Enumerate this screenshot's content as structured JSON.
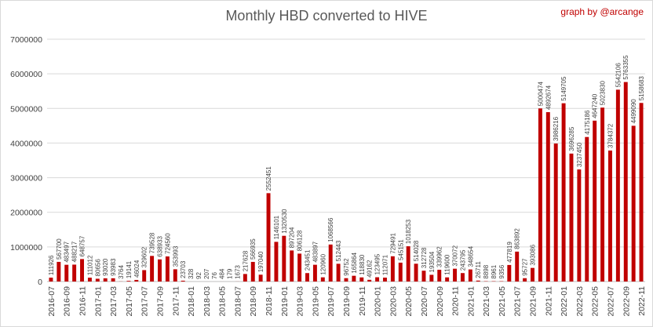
{
  "title": "Monthly HBD converted to  HIVE",
  "credit": "graph by @arcange",
  "colors": {
    "bar": "#c00000",
    "grid": "#d9d9d9",
    "axis": "#bfbfbf"
  },
  "chart_data": {
    "type": "bar",
    "title": "Monthly HBD converted to  HIVE",
    "ylim": [
      0,
      7000000
    ],
    "yticks": [
      0,
      1000000,
      2000000,
      3000000,
      4000000,
      5000000,
      6000000,
      7000000
    ],
    "grid": true,
    "categories": [
      "2016-07",
      "2016-08",
      "2016-09",
      "2016-10",
      "2016-11",
      "2016-12",
      "2017-01",
      "2017-02",
      "2017-03",
      "2017-04",
      "2017-05",
      "2017-06",
      "2017-07",
      "2017-08",
      "2017-09",
      "2017-10",
      "2017-11",
      "2017-12",
      "2018-01",
      "2018-02",
      "2018-03",
      "2018-04",
      "2018-05",
      "2018-06",
      "2018-07",
      "2018-08",
      "2018-09",
      "2018-10",
      "2018-11",
      "2018-12",
      "2019-01",
      "2019-02",
      "2019-03",
      "2019-04",
      "2019-05",
      "2019-06",
      "2019-07",
      "2019-08",
      "2019-09",
      "2019-10",
      "2019-11",
      "2019-12",
      "2020-01",
      "2020-02",
      "2020-03",
      "2020-04",
      "2020-05",
      "2020-06",
      "2020-07",
      "2020-08",
      "2020-09",
      "2020-10",
      "2020-11",
      "2020-12",
      "2021-01",
      "2021-02",
      "2021-03",
      "2021-04",
      "2021-05",
      "2021-06",
      "2021-07",
      "2021-08",
      "2021-09",
      "2021-10",
      "2021-11",
      "2021-12",
      "2022-01",
      "2022-02",
      "2022-03",
      "2022-04",
      "2022-05",
      "2022-06",
      "2022-07",
      "2022-08",
      "2022-09",
      "2022-10",
      "2022-11"
    ],
    "values": [
      111926,
      567700,
      483497,
      488217,
      648757,
      111012,
      80656,
      93020,
      93983,
      3764,
      19141,
      46024,
      329602,
      739528,
      638933,
      724560,
      353993,
      23703,
      328,
      92,
      207,
      76,
      484,
      179,
      1673,
      217628,
      566935,
      197040,
      2552451,
      1146101,
      1320530,
      897204,
      806128,
      243451,
      483897,
      120960,
      1068566,
      512443,
      96752,
      165864,
      118830,
      49162,
      123495,
      112071,
      729491,
      545151,
      1018253,
      514028,
      312728,
      193504,
      339962,
      119600,
      370072,
      243795,
      348654,
      26711,
      8898,
      8961,
      9356,
      477819,
      863892,
      95727,
      393086,
      5000474,
      4892674,
      3986216,
      5149705,
      3696285,
      3237450,
      4175186,
      4647240,
      5023830,
      3784372,
      5542106,
      5763355,
      4499090,
      5158683
    ],
    "labels": [
      "111926",
      "567700",
      "483497",
      "488217",
      "648757",
      "111012",
      "80656",
      "93020",
      "93983",
      "3764",
      "19141",
      "46024",
      "329602",
      "739528",
      "638933",
      "724560",
      "353993",
      "23703",
      "328",
      "92",
      "207",
      "76",
      "484",
      "179",
      "1673",
      "217628",
      "566935",
      "197040",
      "2552451",
      "1146101",
      "1320530",
      "897204",
      "806128",
      "243451",
      "483897",
      "120960",
      "1068566",
      "512443",
      "96752",
      "165864",
      "118830",
      "49162",
      "123495",
      "112071",
      "729491",
      "545151",
      "1018253",
      "514028",
      "312728",
      "193504",
      "339962",
      "119600",
      "370072",
      "243795",
      "348654",
      "26711",
      "8898",
      "8961",
      "9356",
      "477819",
      "863892",
      "95727",
      "393086",
      "5000474",
      "4892674",
      "3986216",
      "5149705",
      "3696285",
      "3237450",
      "4175186",
      "4647240",
      "5023830",
      "3784372",
      "5542106",
      "5763355",
      "4499090",
      "5158683"
    ],
    "ytick_labels": [
      "0",
      "1000000",
      "2000000",
      "3000000",
      "4000000",
      "5000000",
      "6000000",
      "7000000"
    ],
    "xtick_labels": [
      "2016-07",
      "2016-09",
      "2016-11",
      "2017-01",
      "2017-03",
      "2017-05",
      "2017-07",
      "2017-09",
      "2017-11",
      "2018-01",
      "2018-03",
      "2018-05",
      "2018-07",
      "2018-09",
      "2018-11",
      "2019-01",
      "2019-03",
      "2019-05",
      "2019-07",
      "2019-09",
      "2019-11",
      "2020-01",
      "2020-03",
      "2020-05",
      "2020-07",
      "2020-09",
      "2020-11",
      "2021-01",
      "2021-03",
      "2021-05",
      "2021-07",
      "2021-09",
      "2021-11",
      "2022-01",
      "2022-03",
      "2022-05",
      "2022-07",
      "2022-09",
      "2022-11"
    ]
  }
}
